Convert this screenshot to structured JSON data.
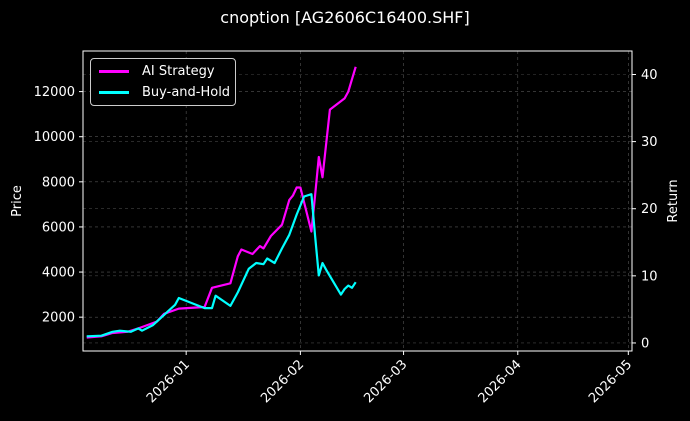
{
  "title": "cnoption [AG2606C16400.SHF]",
  "legend": [
    {
      "label": "AI Strategy",
      "color": "#ff00ff"
    },
    {
      "label": "Buy-and-Hold",
      "color": "#00ffff"
    }
  ],
  "axes": {
    "ylabel_left": "Price",
    "ylabel_right": "Return",
    "yticks_left": [
      "2000",
      "4000",
      "6000",
      "8000",
      "10000",
      "12000"
    ],
    "yticks_right": [
      "0",
      "10",
      "20",
      "30",
      "40"
    ],
    "xticks": [
      "2026-01",
      "2026-02",
      "2026-03",
      "2026-04",
      "2026-05"
    ]
  },
  "chart_data": {
    "type": "line",
    "title": "cnoption [AG2606C16400.SHF]",
    "xlabel": "",
    "ylabel": "Price",
    "ylabel_secondary": "Return",
    "xlim": [
      "2025-12-04",
      "2026-05-02"
    ],
    "ylim": [
      500,
      13800
    ],
    "ylim_secondary": [
      -1.2,
      43.5
    ],
    "grid": true,
    "legend_position": "upper left",
    "series": [
      {
        "name": "AI Strategy",
        "color": "#ff00ff",
        "x": [
          "2025-12-05",
          "2025-12-09",
          "2025-12-12",
          "2025-12-16",
          "2025-12-19",
          "2025-12-22",
          "2025-12-24",
          "2025-12-26",
          "2025-12-30",
          "2026-01-06",
          "2026-01-08",
          "2026-01-13",
          "2026-01-15",
          "2026-01-16",
          "2026-01-19",
          "2026-01-21",
          "2026-01-22",
          "2026-01-24",
          "2026-01-27",
          "2026-01-29",
          "2026-01-30",
          "2026-01-31",
          "2026-02-01",
          "2026-02-04",
          "2026-02-05",
          "2026-02-06",
          "2026-02-07",
          "2026-02-09",
          "2026-02-13",
          "2026-02-14",
          "2026-02-16"
        ],
        "values": [
          1100,
          1150,
          1300,
          1350,
          1500,
          1680,
          1800,
          2150,
          2380,
          2450,
          3300,
          3500,
          4700,
          5000,
          4800,
          5150,
          5050,
          5600,
          6100,
          7200,
          7400,
          7750,
          7750,
          5800,
          7400,
          9100,
          8200,
          11200,
          11700,
          12000,
          13100
        ]
      },
      {
        "name": "Buy-and-Hold",
        "color": "#00ffff",
        "x": [
          "2025-12-05",
          "2025-12-09",
          "2025-12-12",
          "2025-12-14",
          "2025-12-17",
          "2025-12-19",
          "2025-12-20",
          "2025-12-23",
          "2025-12-24",
          "2025-12-26",
          "2025-12-27",
          "2025-12-29",
          "2025-12-30",
          "2026-01-06",
          "2026-01-08",
          "2026-01-09",
          "2026-01-13",
          "2026-01-15",
          "2026-01-18",
          "2026-01-20",
          "2026-01-22",
          "2026-01-23",
          "2026-01-25",
          "2026-01-27",
          "2026-01-29",
          "2026-01-31",
          "2026-02-02",
          "2026-02-04",
          "2026-02-05",
          "2026-02-06",
          "2026-02-07",
          "2026-02-08",
          "2026-02-12",
          "2026-02-13",
          "2026-02-14",
          "2026-02-15",
          "2026-02-16"
        ],
        "values": [
          1150,
          1180,
          1350,
          1400,
          1350,
          1500,
          1400,
          1650,
          1800,
          2100,
          2250,
          2550,
          2850,
          2400,
          2400,
          2950,
          2500,
          3100,
          4150,
          4400,
          4350,
          4600,
          4400,
          5050,
          5650,
          6550,
          7350,
          7450,
          5600,
          3850,
          4400,
          4100,
          3000,
          3250,
          3400,
          3300,
          3550
        ]
      }
    ]
  }
}
